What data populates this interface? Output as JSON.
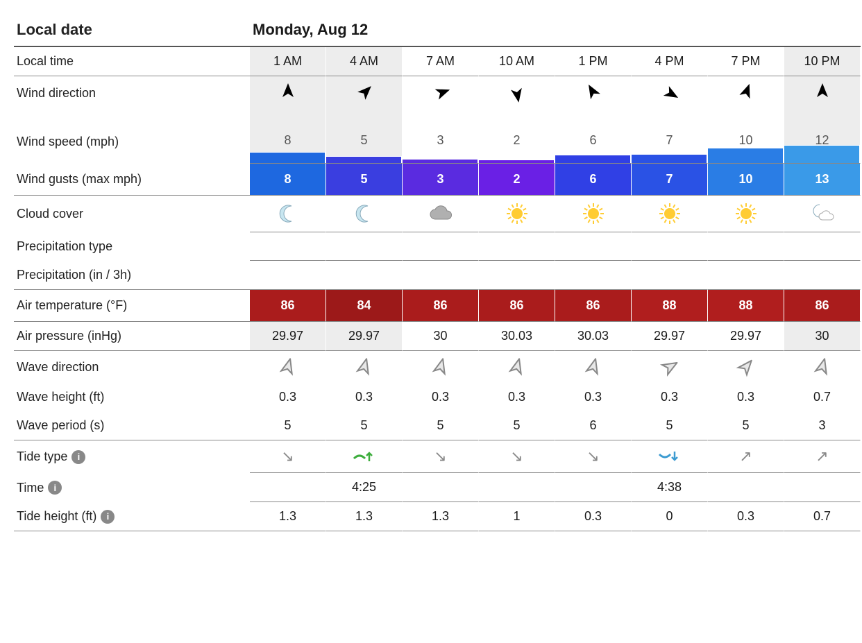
{
  "header": {
    "date_label": "Local date",
    "date_value": "Monday, Aug 12"
  },
  "rows": {
    "local_time": {
      "label": "Local time"
    },
    "wind_direction": {
      "label": "Wind direction"
    },
    "wind_speed": {
      "label": "Wind speed (mph)"
    },
    "wind_gusts": {
      "label": "Wind gusts (max mph)"
    },
    "cloud_cover": {
      "label": "Cloud cover"
    },
    "precipitation_type": {
      "label": "Precipitation type"
    },
    "precipitation_amount": {
      "label": "Precipitation (in / 3h)"
    },
    "air_temp": {
      "label": "Air temperature (°F)"
    },
    "air_pressure": {
      "label": "Air pressure (inHg)"
    },
    "wave_direction": {
      "label": "Wave direction"
    },
    "wave_height": {
      "label": "Wave height (ft)"
    },
    "wave_period": {
      "label": "Wave period (s)"
    },
    "tide_type": {
      "label": "Tide type"
    },
    "tide_time": {
      "label": "Time"
    },
    "tide_height": {
      "label": "Tide height (ft)"
    }
  },
  "columns": [
    {
      "time": "1 AM",
      "night": true,
      "wind_dir_deg": 0,
      "wind_speed": 8,
      "speed_bar_h": 16,
      "speed_bar_color": "#1e68e0",
      "gust": 8,
      "gust_color": "#1e68e0",
      "cloud": "moon",
      "temp": 86,
      "temp_color": "#aa1c1c",
      "pressure": "29.97",
      "wave_dir_deg": 15,
      "wave_height": "0.3",
      "wave_period": "5",
      "tide_type": "falling",
      "tide_time": "",
      "tide_height": "1.3"
    },
    {
      "time": "4 AM",
      "night": true,
      "wind_dir_deg": 45,
      "wind_speed": 5,
      "speed_bar_h": 10,
      "speed_bar_color": "#3a3ee0",
      "gust": 5,
      "gust_color": "#3a3ee0",
      "cloud": "moon",
      "temp": 84,
      "temp_color": "#9c1919",
      "pressure": "29.97",
      "wave_dir_deg": 15,
      "wave_height": "0.3",
      "wave_period": "5",
      "tide_type": "high",
      "tide_time": "4:25",
      "tide_height": "1.3"
    },
    {
      "time": "7 AM",
      "night": false,
      "wind_dir_deg": 70,
      "wind_speed": 3,
      "speed_bar_h": 6,
      "speed_bar_color": "#5a2be0",
      "gust": 3,
      "gust_color": "#5a2be0",
      "cloud": "cloud",
      "temp": 86,
      "temp_color": "#aa1c1c",
      "pressure": "30",
      "wave_dir_deg": 15,
      "wave_height": "0.3",
      "wave_period": "5",
      "tide_type": "falling",
      "tide_time": "",
      "tide_height": "1.3"
    },
    {
      "time": "10 AM",
      "night": false,
      "wind_dir_deg": 170,
      "wind_speed": 2,
      "speed_bar_h": 5,
      "speed_bar_color": "#6a20e5",
      "gust": 2,
      "gust_color": "#6a20e5",
      "cloud": "sun",
      "temp": 86,
      "temp_color": "#aa1c1c",
      "pressure": "30.03",
      "wave_dir_deg": 15,
      "wave_height": "0.3",
      "wave_period": "5",
      "tide_type": "falling",
      "tide_time": "",
      "tide_height": "1"
    },
    {
      "time": "1 PM",
      "night": false,
      "wind_dir_deg": -30,
      "wind_speed": 6,
      "speed_bar_h": 12,
      "speed_bar_color": "#3040e5",
      "gust": 6,
      "gust_color": "#3040e5",
      "cloud": "sun",
      "temp": 86,
      "temp_color": "#aa1c1c",
      "pressure": "30.03",
      "wave_dir_deg": 15,
      "wave_height": "0.3",
      "wave_period": "6",
      "tide_type": "falling",
      "tide_time": "",
      "tide_height": "0.3"
    },
    {
      "time": "4 PM",
      "night": false,
      "wind_dir_deg": 120,
      "wind_speed": 7,
      "speed_bar_h": 13,
      "speed_bar_color": "#2a52e5",
      "gust": 7,
      "gust_color": "#2a52e5",
      "cloud": "sun",
      "temp": 88,
      "temp_color": "#b01e1e",
      "pressure": "29.97",
      "wave_dir_deg": 60,
      "wave_height": "0.3",
      "wave_period": "5",
      "tide_type": "low",
      "tide_time": "4:38",
      "tide_height": "0"
    },
    {
      "time": "7 PM",
      "night": false,
      "wind_dir_deg": 20,
      "wind_speed": 10,
      "speed_bar_h": 22,
      "speed_bar_color": "#2a7de5",
      "gust": 10,
      "gust_color": "#2a7de5",
      "cloud": "sun",
      "temp": 88,
      "temp_color": "#b01e1e",
      "pressure": "29.97",
      "wave_dir_deg": 40,
      "wave_height": "0.3",
      "wave_period": "5",
      "tide_type": "rising",
      "tide_time": "",
      "tide_height": "0.3"
    },
    {
      "time": "10 PM",
      "night": true,
      "wind_dir_deg": 0,
      "wind_speed": 12,
      "speed_bar_h": 26,
      "speed_bar_color": "#3a9ae8",
      "gust": 13,
      "gust_color": "#3a9ae8",
      "cloud": "moon-cloud",
      "temp": 86,
      "temp_color": "#aa1c1c",
      "pressure": "30",
      "wave_dir_deg": 15,
      "wave_height": "0.7",
      "wave_period": "3",
      "tide_type": "rising",
      "tide_time": "",
      "tide_height": "0.7"
    }
  ],
  "styles": {
    "arrow_fill": "#000000",
    "wave_arrow_stroke": "#888888",
    "wave_arrow_fill": "#e8e8e8",
    "tide_high_color": "#3cad3c",
    "tide_low_color": "#3c9bd1",
    "tide_mid_color": "#888888",
    "sun_color": "#ffcc33",
    "moon_color": "#c8e6f0",
    "cloud_color": "#b0b0b0"
  }
}
